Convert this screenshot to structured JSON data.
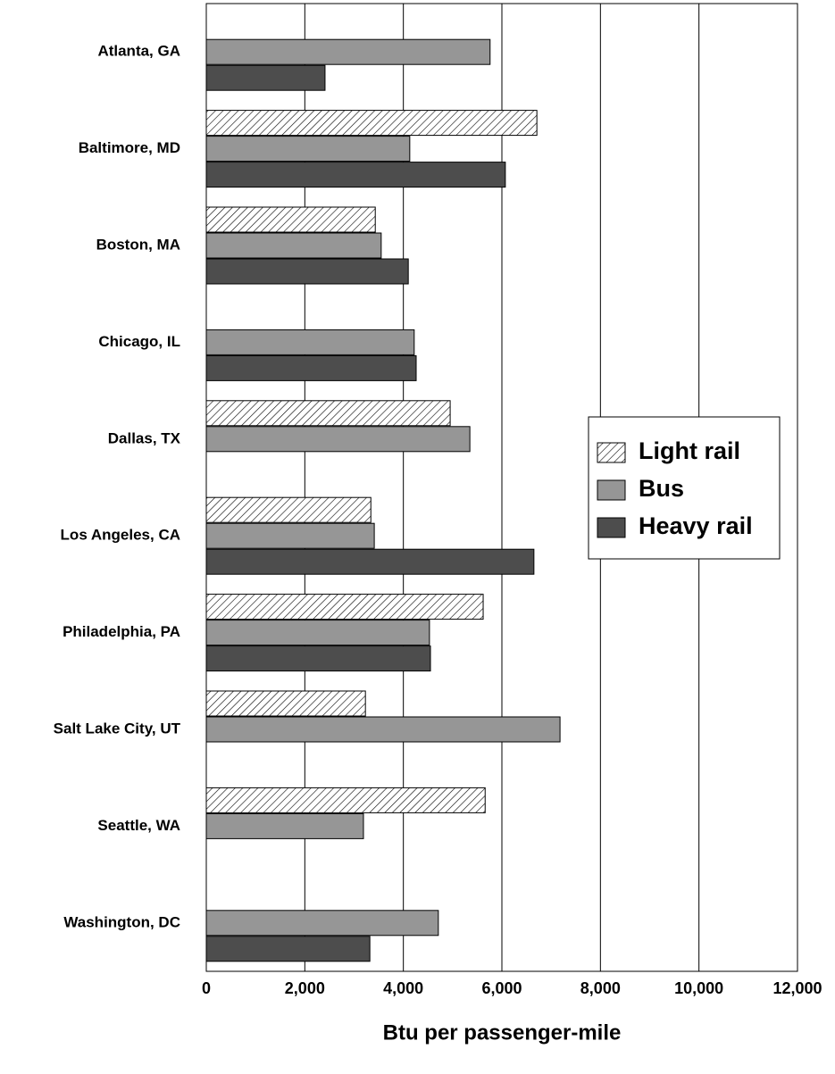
{
  "chart_data": {
    "type": "barh",
    "categories": [
      "Atlanta, GA",
      "Baltimore, MD",
      "Boston, MA",
      "Chicago, IL",
      "Dallas, TX",
      "Los Angeles, CA",
      "Philadelphia, PA",
      "Salt Lake City, UT",
      "Seattle, WA",
      "Washington, DC"
    ],
    "series": [
      {
        "name": "Light rail",
        "color": "#ffffff",
        "hatch": true,
        "values": [
          null,
          6710,
          3430,
          null,
          4950,
          3340,
          5620,
          3230,
          5660,
          null
        ]
      },
      {
        "name": "Bus",
        "color": "#969696",
        "values": [
          5760,
          4130,
          3550,
          4220,
          5350,
          3410,
          4530,
          7180,
          3190,
          4710
        ]
      },
      {
        "name": "Heavy rail",
        "color": "#4d4d4d",
        "values": [
          2410,
          6070,
          4100,
          4260,
          null,
          6650,
          4550,
          null,
          null,
          3320
        ]
      }
    ],
    "xlabel": "Btu per passenger-mile",
    "xlim": [
      0,
      12000
    ],
    "xticks": [
      0,
      {
        "value": 2000,
        "label": "2,000"
      },
      {
        "value": 4000,
        "label": "4,000"
      },
      {
        "value": 6000,
        "label": "6,000"
      },
      {
        "value": 8000,
        "label": "8,000"
      },
      {
        "value": 10000,
        "label": "10,000"
      },
      {
        "value": 12000,
        "label": "12,000"
      }
    ],
    "grid": true,
    "legend": "right"
  }
}
